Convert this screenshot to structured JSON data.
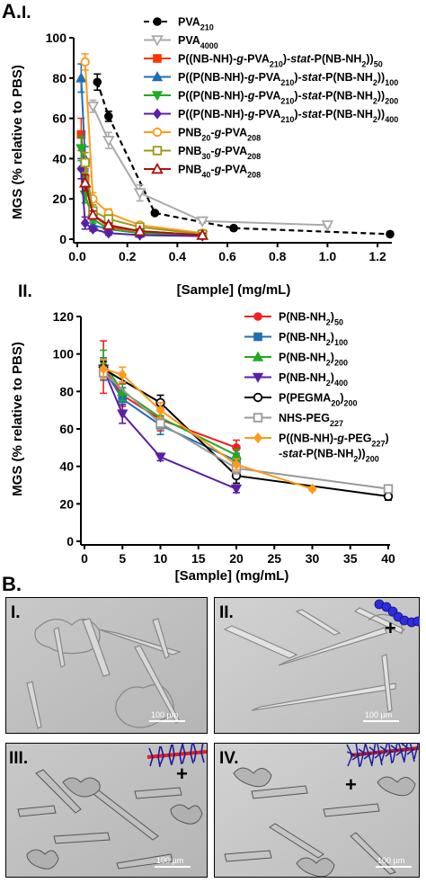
{
  "figure": {
    "panel_a_label": "A.",
    "panel_b_label": "B."
  },
  "chart_data": [
    {
      "type": "line",
      "panel_label": "I.",
      "xlabel": "[Sample] (mg/mL)",
      "ylabel": "MGS (% relative to PBS)",
      "xlim": [
        0,
        1.25
      ],
      "ylim": [
        0,
        100
      ],
      "xticks": [
        "0.0",
        "0.2",
        "0.4",
        "0.6",
        "0.8",
        "1.0",
        "1.2"
      ],
      "yticks": [
        "0",
        "20",
        "40",
        "60",
        "80",
        "100"
      ],
      "legend_placement": "top-right",
      "series": [
        {
          "name": "PVA210",
          "name_parts": [
            {
              "t": "PVA"
            },
            {
              "t": "210",
              "sub": true
            }
          ],
          "color": "#000000",
          "marker": "circle-filled",
          "dash": true,
          "x": [
            0.08,
            0.125,
            0.31,
            0.625,
            1.25
          ],
          "y": [
            78,
            61,
            13,
            5.5,
            2.5
          ],
          "err": [
            4,
            2.5,
            1,
            1,
            1
          ]
        },
        {
          "name": "PVA4000",
          "name_parts": [
            {
              "t": "PVA"
            },
            {
              "t": "4000",
              "sub": true
            }
          ],
          "color": "#aaaaaa",
          "marker": "triangle-down-open",
          "dash": false,
          "x": [
            0.0625,
            0.125,
            0.25,
            0.5,
            1.0
          ],
          "y": [
            66,
            49,
            23,
            9,
            7
          ],
          "err": [
            3,
            4,
            4,
            1,
            1
          ]
        },
        {
          "name": "P((NB-NH)-g-PVA210)-stat-P(NB-NH2))50",
          "name_parts": [
            {
              "t": "P((NB-NH)-"
            },
            {
              "t": "g",
              "it": true
            },
            {
              "t": "-PVA"
            },
            {
              "t": "210",
              "sub": true
            },
            {
              "t": ")-"
            },
            {
              "t": "stat",
              "it": true
            },
            {
              "t": "-P(NB-NH"
            },
            {
              "t": "2",
              "sub": true
            },
            {
              "t": "))"
            },
            {
              "t": "50",
              "sub": true
            }
          ],
          "color": "#ff3300",
          "marker": "square-filled",
          "dash": false,
          "x": [
            0.0156,
            0.03125,
            0.0625,
            0.125,
            0.25,
            0.5
          ],
          "y": [
            52,
            30,
            12,
            6,
            4,
            2
          ],
          "err": [
            8,
            5,
            3,
            2,
            1,
            1
          ]
        },
        {
          "name": "P((P(NB-NH)-g-PVA210)-stat-P(NB-NH2))100",
          "name_parts": [
            {
              "t": "P((P(NB-NH)-"
            },
            {
              "t": "g",
              "it": true
            },
            {
              "t": "-PVA"
            },
            {
              "t": "210",
              "sub": true
            },
            {
              "t": ")-"
            },
            {
              "t": "stat",
              "it": true
            },
            {
              "t": "-P(NB-NH"
            },
            {
              "t": "2",
              "sub": true
            },
            {
              "t": "))"
            },
            {
              "t": "100",
              "sub": true
            }
          ],
          "color": "#1e6fb4",
          "marker": "triangle-up-filled",
          "dash": false,
          "x": [
            0.0156,
            0.03125,
            0.0625,
            0.125,
            0.25,
            0.5
          ],
          "y": [
            80,
            40,
            7,
            5,
            3,
            2
          ],
          "err": [
            7,
            6,
            2,
            1,
            1,
            1
          ]
        },
        {
          "name": "P((P(NB-NH)-g-PVA210)-stat-P(NB-NH2))200",
          "name_parts": [
            {
              "t": "P((P(NB-NH)-"
            },
            {
              "t": "g",
              "it": true
            },
            {
              "t": "-PVA"
            },
            {
              "t": "210",
              "sub": true
            },
            {
              "t": ")-"
            },
            {
              "t": "stat",
              "it": true
            },
            {
              "t": "-P(NB-NH"
            },
            {
              "t": "2",
              "sub": true
            },
            {
              "t": "))"
            },
            {
              "t": "200",
              "sub": true
            }
          ],
          "color": "#22aa22",
          "marker": "triangle-down-filled",
          "dash": false,
          "x": [
            0.0156,
            0.03125,
            0.0625,
            0.125,
            0.25,
            0.5
          ],
          "y": [
            45,
            22,
            10,
            5,
            3,
            2
          ],
          "err": [
            6,
            4,
            2,
            1,
            1,
            1
          ]
        },
        {
          "name": "P((P(NB-NH)-g-PVA210)-stat-P(NB-NH2))400",
          "name_parts": [
            {
              "t": "P((P(NB-NH)-"
            },
            {
              "t": "g",
              "it": true
            },
            {
              "t": "-PVA"
            },
            {
              "t": "210",
              "sub": true
            },
            {
              "t": ")-"
            },
            {
              "t": "stat",
              "it": true
            },
            {
              "t": "-P(NB-NH"
            },
            {
              "t": "2",
              "sub": true
            },
            {
              "t": "))"
            },
            {
              "t": "400",
              "sub": true
            }
          ],
          "color": "#5a1fa8",
          "marker": "diamond-filled",
          "dash": false,
          "x": [
            0.0156,
            0.03125,
            0.0625,
            0.125,
            0.25,
            0.5
          ],
          "y": [
            35,
            8,
            5,
            3,
            2,
            1.5
          ],
          "err": [
            5,
            3,
            1,
            1,
            1,
            1
          ]
        },
        {
          "name": "PNB20-g-PVA208",
          "name_parts": [
            {
              "t": "PNB"
            },
            {
              "t": "20",
              "sub": true
            },
            {
              "t": "-"
            },
            {
              "t": "g",
              "it": true
            },
            {
              "t": "-PVA"
            },
            {
              "t": "208",
              "sub": true
            }
          ],
          "color": "#ff9a1a",
          "marker": "circle-open",
          "dash": false,
          "x": [
            0.03125,
            0.0625,
            0.125,
            0.25,
            0.5
          ],
          "y": [
            88,
            20,
            13,
            7,
            3
          ],
          "err": [
            4,
            3,
            2,
            1,
            1
          ]
        },
        {
          "name": "PNB30-g-PVA208",
          "name_parts": [
            {
              "t": "PNB"
            },
            {
              "t": "30",
              "sub": true
            },
            {
              "t": "-"
            },
            {
              "t": "g",
              "it": true
            },
            {
              "t": "-PVA"
            },
            {
              "t": "208",
              "sub": true
            }
          ],
          "color": "#9a9a1a",
          "marker": "square-open",
          "dash": false,
          "x": [
            0.03125,
            0.0625,
            0.125,
            0.25,
            0.5
          ],
          "y": [
            38,
            14,
            10,
            6,
            2.5
          ],
          "err": [
            5,
            3,
            2,
            1,
            1
          ]
        },
        {
          "name": "PNB40-g-PVA208",
          "name_parts": [
            {
              "t": "PNB"
            },
            {
              "t": "40",
              "sub": true
            },
            {
              "t": "-"
            },
            {
              "t": "g",
              "it": true
            },
            {
              "t": "-PVA"
            },
            {
              "t": "208",
              "sub": true
            }
          ],
          "color": "#aa1111",
          "marker": "triangle-up-open",
          "dash": false,
          "x": [
            0.03125,
            0.0625,
            0.125,
            0.25,
            0.5
          ],
          "y": [
            28,
            12,
            7,
            4,
            2
          ],
          "err": [
            4,
            2,
            1,
            1,
            1
          ]
        }
      ]
    },
    {
      "type": "line",
      "panel_label": "II.",
      "xlabel": "[Sample] (mg/mL)",
      "ylabel": "MGS (% relative to PBS)",
      "xlim": [
        0,
        40
      ],
      "ylim": [
        0,
        120
      ],
      "xticks": [
        "0",
        "5",
        "10",
        "15",
        "20",
        "25",
        "30",
        "35",
        "40"
      ],
      "yticks": [
        "0",
        "20",
        "40",
        "60",
        "80",
        "100",
        "120"
      ],
      "legend_placement": "top-right",
      "series": [
        {
          "name": "P(NB-NH2)50",
          "name_parts": [
            {
              "t": "P(NB-NH"
            },
            {
              "t": "2",
              "sub": true
            },
            {
              "t": ")"
            },
            {
              "t": "50",
              "sub": true
            }
          ],
          "color": "#ee2222",
          "marker": "circle-filled",
          "dash": false,
          "x": [
            2.5,
            5,
            10,
            20
          ],
          "y": [
            93,
            78,
            65,
            50
          ],
          "err": [
            14,
            6,
            6,
            4
          ]
        },
        {
          "name": "P(NB-NH2)100",
          "name_parts": [
            {
              "t": "P(NB-NH"
            },
            {
              "t": "2",
              "sub": true
            },
            {
              "t": ")"
            },
            {
              "t": "100",
              "sub": true
            }
          ],
          "color": "#1e6fb4",
          "marker": "square-filled",
          "dash": false,
          "x": [
            2.5,
            5,
            10,
            20
          ],
          "y": [
            92,
            76,
            62,
            43
          ],
          "err": [
            6,
            6,
            5,
            4
          ]
        },
        {
          "name": "P(NB-NH2)200",
          "name_parts": [
            {
              "t": "P(NB-NH"
            },
            {
              "t": "2",
              "sub": true
            },
            {
              "t": ")"
            },
            {
              "t": "200",
              "sub": true
            }
          ],
          "color": "#22aa22",
          "marker": "triangle-up-filled",
          "dash": false,
          "x": [
            2.5,
            5,
            10,
            20
          ],
          "y": [
            95,
            80,
            66,
            46
          ],
          "err": [
            7,
            5,
            4,
            3
          ]
        },
        {
          "name": "P(NB-NH2)400",
          "name_parts": [
            {
              "t": "P(NB-NH"
            },
            {
              "t": "2",
              "sub": true
            },
            {
              "t": ")"
            },
            {
              "t": "400",
              "sub": true
            }
          ],
          "color": "#5a1fa8",
          "marker": "triangle-down-filled",
          "dash": false,
          "x": [
            2.5,
            5,
            10,
            20
          ],
          "y": [
            92,
            68,
            45,
            28
          ],
          "err": [
            5,
            5,
            2,
            2
          ]
        },
        {
          "name": "P(PEGMA20)200",
          "name_parts": [
            {
              "t": "P(PEGMA"
            },
            {
              "t": "20",
              "sub": true
            },
            {
              "t": ")"
            },
            {
              "t": "200",
              "sub": true
            }
          ],
          "color": "#000000",
          "marker": "circle-open",
          "dash": false,
          "x": [
            2.5,
            10,
            20,
            40
          ],
          "y": [
            92,
            74,
            35,
            24
          ],
          "err": [
            4,
            4,
            4,
            2
          ]
        },
        {
          "name": "NHS-PEG227",
          "name_parts": [
            {
              "t": "NHS-PEG"
            },
            {
              "t": "227",
              "sub": true
            }
          ],
          "color": "#999999",
          "marker": "square-open",
          "dash": false,
          "x": [
            2.5,
            10,
            20,
            40
          ],
          "y": [
            90,
            63,
            39,
            28
          ],
          "err": [
            3,
            3,
            3,
            2
          ]
        },
        {
          "name": "P((NB-NH)-g-PEG227)-stat-P(NB-NH2))200",
          "name_parts": [
            {
              "t": "P((NB-NH)-"
            },
            {
              "t": "g",
              "it": true
            },
            {
              "t": "-PEG"
            },
            {
              "t": "227",
              "sub": true
            },
            {
              "t": ")"
            }
          ],
          "name_parts_line2": [
            {
              "t": "-"
            },
            {
              "t": "stat",
              "it": true
            },
            {
              "t": "-P(NB-NH"
            },
            {
              "t": "2",
              "sub": true
            },
            {
              "t": "))"
            },
            {
              "t": "200",
              "sub": true
            }
          ],
          "color": "#ff9a1a",
          "marker": "diamond-filled",
          "dash": false,
          "x": [
            2.5,
            5,
            10,
            20,
            30
          ],
          "y": [
            92,
            89,
            70,
            41,
            28
          ],
          "err": [
            5,
            4,
            4,
            3,
            1
          ]
        }
      ]
    }
  ],
  "micrographs": [
    {
      "label": "I.",
      "scale": "100 µm",
      "inset": "none"
    },
    {
      "label": "II.",
      "scale": "100 µm",
      "inset": "polymer-blue"
    },
    {
      "label": "III.",
      "scale": "100 µm",
      "inset": "brush-red-blue"
    },
    {
      "label": "IV.",
      "scale": "100 µm",
      "inset": "brush-dense-blue"
    }
  ]
}
